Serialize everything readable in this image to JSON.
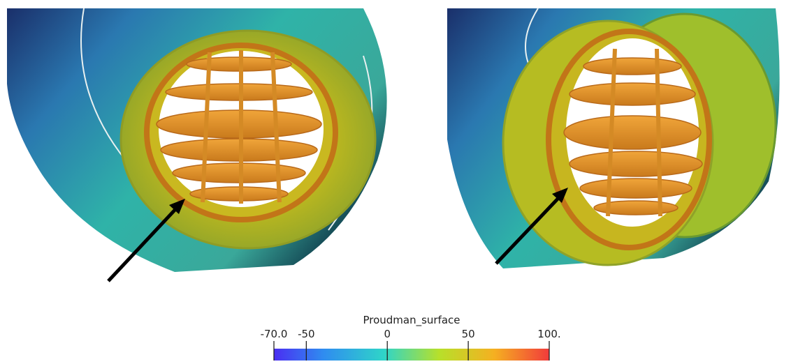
{
  "colorbar": {
    "title": "Proudman_surface",
    "range": [
      -70,
      100
    ],
    "ticks": [
      {
        "value": -70,
        "label": "-70.0"
      },
      -50,
      0,
      50,
      {
        "value": 100,
        "label": "100."
      }
    ]
  }
}
